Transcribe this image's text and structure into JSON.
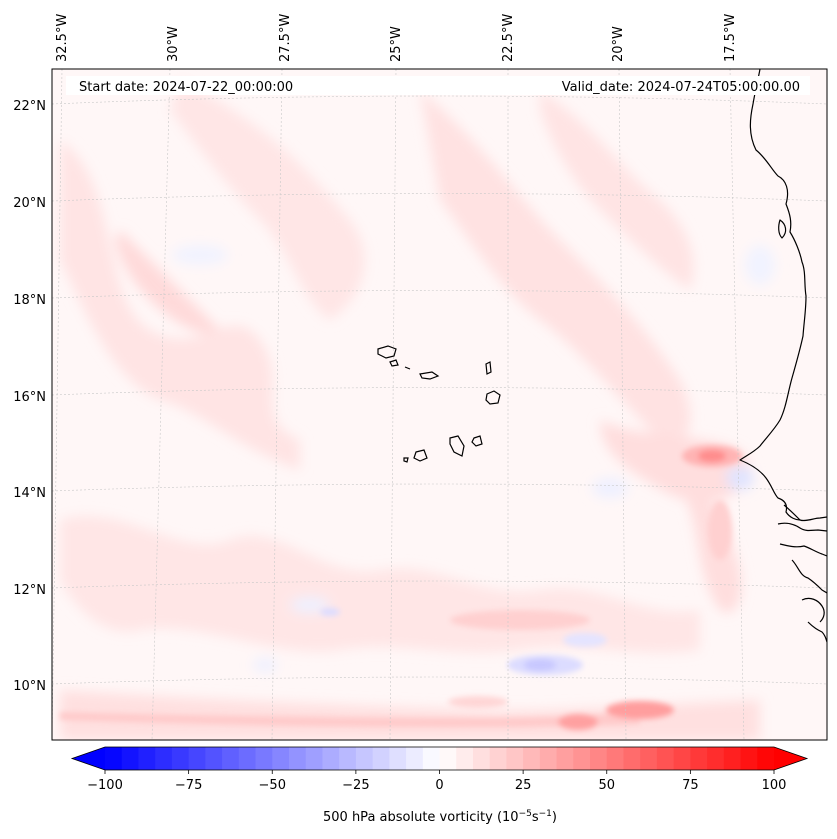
{
  "map": {
    "start_label": "Start date: 2024-07-22_00:00:00",
    "valid_label": "Valid_date: 2024-07-24T05:00:00.00",
    "lon_labels": [
      "32.5°W",
      "30°W",
      "27.5°W",
      "25°W",
      "22.5°W",
      "20°W",
      "17.5°W"
    ],
    "lat_labels": [
      "22°N",
      "20°N",
      "18°N",
      "16°N",
      "14°N",
      "12°N",
      "10°N"
    ]
  },
  "colorbar": {
    "title": "500 hPa absolute vorticity (10",
    "title_sup1": "−5",
    "title_mid": "s",
    "title_sup2": "−1",
    "title_end": ")",
    "ticks": [
      -100,
      -75,
      -50,
      -25,
      0,
      25,
      50,
      75,
      100
    ],
    "tick_labels": [
      "−100",
      "−75",
      "−50",
      "−25",
      "0",
      "25",
      "50",
      "75",
      "100"
    ],
    "min": -100,
    "max": 100,
    "colors": {
      "negative": "#0000ff",
      "zero": "#ffffff",
      "positive": "#ff0000"
    }
  }
}
